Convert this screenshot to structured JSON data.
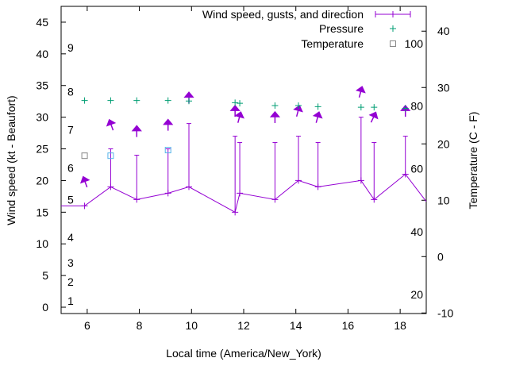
{
  "chart_data": {
    "type": "line",
    "xlabel": "Local time (America/New_York)",
    "ylabel": "Wind speed (kt - Beaufort)",
    "y2label": "Temperature (C - F)",
    "xlim": [
      5,
      19
    ],
    "ylim": [
      -1,
      47.5
    ],
    "y2lim": [
      -10.1,
      44.4
    ],
    "xticks": [
      6,
      8,
      10,
      12,
      14,
      16,
      18
    ],
    "yticks": [
      0,
      5,
      10,
      15,
      20,
      25,
      30,
      35,
      40,
      45
    ],
    "y2ticks": [
      -10,
      0,
      10,
      20,
      30,
      40
    ],
    "beaufort_labels": [
      {
        "label": "1",
        "y": 1
      },
      {
        "label": "2",
        "y": 4
      },
      {
        "label": "3",
        "y": 7
      },
      {
        "label": "4",
        "y": 11
      },
      {
        "label": "5",
        "y": 17
      },
      {
        "label": "6",
        "y": 22
      },
      {
        "label": "7",
        "y": 28
      },
      {
        "label": "8",
        "y": 34
      },
      {
        "label": "9",
        "y": 41
      }
    ],
    "fahrenheit_labels": [
      {
        "label": "20",
        "y2": -6.7
      },
      {
        "label": "40",
        "y2": 4.4
      },
      {
        "label": "60",
        "y2": 15.6
      },
      {
        "label": "80",
        "y2": 26.7
      },
      {
        "label": "100",
        "y2": 37.8
      }
    ],
    "legend": [
      {
        "label": "Wind speed, gusts, and direction",
        "color": "#9400d3",
        "marker": "line"
      },
      {
        "label": "Pressure",
        "color": "#009e73",
        "marker": "plus"
      },
      {
        "label": "Temperature",
        "color": "#888888",
        "marker": "square"
      }
    ],
    "legend_position": "top-right",
    "wind": {
      "color": "#9400d3",
      "x": [
        5.0,
        5.9,
        6.9,
        7.9,
        9.1,
        9.9,
        11.67,
        11.85,
        13.2,
        14.1,
        14.85,
        16.5,
        17.0,
        18.2,
        19.0
      ],
      "speed": [
        16,
        16,
        19,
        17,
        18,
        19,
        15,
        18,
        17,
        20,
        19,
        20,
        17,
        21,
        16.7
      ],
      "gust": [
        null,
        null,
        25,
        24,
        25,
        29,
        27,
        26,
        26,
        27,
        26,
        30,
        26,
        27,
        null
      ]
    },
    "direction_arrows": [
      {
        "x": 5.9,
        "y": 20,
        "angle": -20
      },
      {
        "x": 6.9,
        "y": 29,
        "angle": -20
      },
      {
        "x": 7.9,
        "y": 28,
        "angle": 0
      },
      {
        "x": 9.1,
        "y": 29,
        "angle": 0
      },
      {
        "x": 9.9,
        "y": 33.3,
        "angle": 0
      },
      {
        "x": 11.67,
        "y": 31.2,
        "angle": 0
      },
      {
        "x": 11.85,
        "y": 30.2,
        "angle": 15
      },
      {
        "x": 13.2,
        "y": 30.2,
        "angle": 0
      },
      {
        "x": 14.1,
        "y": 31.2,
        "angle": 15
      },
      {
        "x": 14.85,
        "y": 30.2,
        "angle": 15
      },
      {
        "x": 16.5,
        "y": 34.2,
        "angle": 15
      },
      {
        "x": 17.0,
        "y": 30.2,
        "angle": 25
      },
      {
        "x": 18.2,
        "y": 31.2,
        "angle": 0
      }
    ],
    "pressure": {
      "color": "#009e73",
      "x": [
        5.9,
        6.9,
        7.9,
        9.1,
        9.9,
        11.67,
        11.85,
        13.2,
        14.1,
        14.85,
        16.5,
        17.0,
        18.2
      ],
      "y2": [
        27.7,
        27.7,
        27.7,
        27.7,
        27.6,
        27.3,
        27.2,
        26.8,
        26.8,
        26.6,
        26.5,
        26.5,
        26.3
      ]
    },
    "temperature": {
      "colors": [
        "#888888",
        "#56b4e9",
        "#56b4e9"
      ],
      "x": [
        5.9,
        6.9,
        9.1
      ],
      "y2": [
        17.9,
        17.9,
        18.9
      ]
    }
  }
}
